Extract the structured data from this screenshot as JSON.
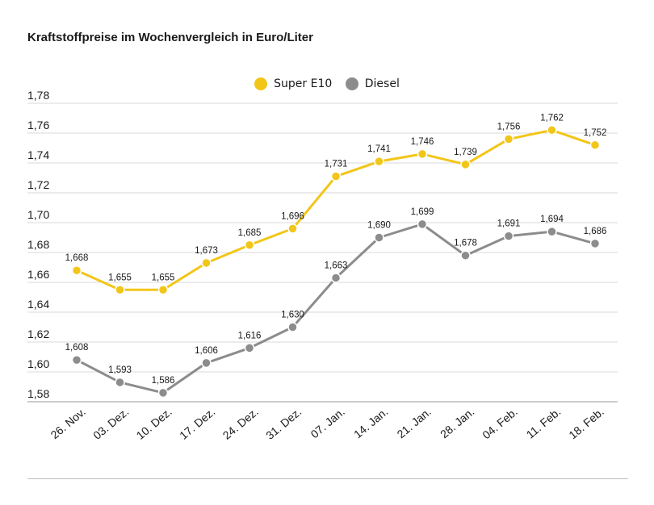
{
  "title": "Kraftstoffpreise im Wochenvergleich in Euro/Liter",
  "colors": {
    "super": "#f2c619",
    "diesel": "#8c8c8c",
    "grid": "#d9d9d9",
    "axis": "#9a9a9a",
    "text": "#1a1a1a"
  },
  "chart_data": {
    "type": "line",
    "title": "Kraftstoffpreise im Wochenvergleich in Euro/Liter",
    "xlabel": "",
    "ylabel": "",
    "categories": [
      "26. Nov.",
      "03. Dez.",
      "10. Dez.",
      "17. Dez.",
      "24. Dez.",
      "31. Dez.",
      "07. Jan.",
      "14. Jan.",
      "21. Jan.",
      "28. Jan.",
      "04. Feb.",
      "11. Feb.",
      "18. Feb."
    ],
    "ylim": [
      1.58,
      1.78
    ],
    "yticks": [
      "1,58",
      "1,60",
      "1,62",
      "1,64",
      "1,66",
      "1,68",
      "1,70",
      "1,72",
      "1,74",
      "1,76",
      "1,78"
    ],
    "grid": true,
    "legend_position": "top-center",
    "series": [
      {
        "name": "Super E10",
        "color": "#f2c619",
        "values": [
          1.668,
          1.655,
          1.655,
          1.673,
          1.685,
          1.696,
          1.731,
          1.741,
          1.746,
          1.739,
          1.756,
          1.762,
          1.752
        ],
        "labels": [
          "1,668",
          "1,655",
          "1,655",
          "1,673",
          "1,685",
          "1,696",
          "1,731",
          "1,741",
          "1,746",
          "1,739",
          "1,756",
          "1,762",
          "1,752"
        ]
      },
      {
        "name": "Diesel",
        "color": "#8c8c8c",
        "values": [
          1.608,
          1.593,
          1.586,
          1.606,
          1.616,
          1.63,
          1.663,
          1.69,
          1.699,
          1.678,
          1.691,
          1.694,
          1.686
        ],
        "labels": [
          "1,608",
          "1,593",
          "1,586",
          "1,606",
          "1,616",
          "1,630",
          "1,663",
          "1,690",
          "1,699",
          "1,678",
          "1,691",
          "1,694",
          "1,686"
        ]
      }
    ]
  }
}
